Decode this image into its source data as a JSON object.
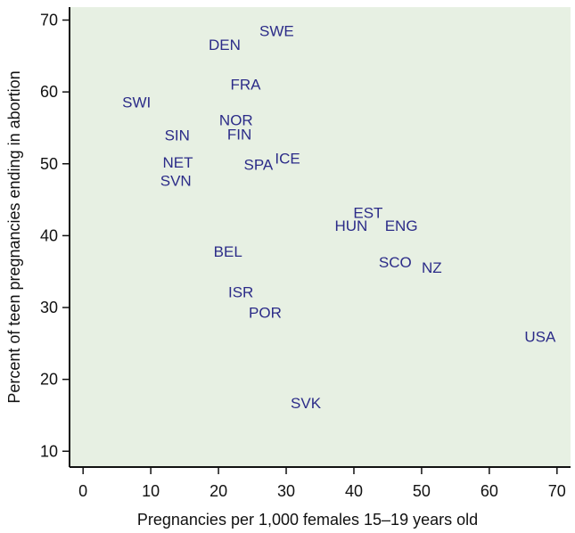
{
  "chart_data": {
    "type": "scatter",
    "title": "",
    "xlabel": "Pregnancies per 1,000 females 15–19 years old",
    "ylabel": "Percent of teen pregnancies ending in abortion",
    "xlim": [
      -2,
      72
    ],
    "ylim": [
      7.8,
      71.8
    ],
    "xticks": [
      "0",
      "10",
      "20",
      "30",
      "40",
      "50",
      "60",
      "70"
    ],
    "yticks": [
      "10",
      "20",
      "30",
      "40",
      "50",
      "60",
      "70"
    ],
    "grid": false,
    "points": [
      {
        "label": "SWE",
        "x": 28.6,
        "y": 68.5
      },
      {
        "label": "DEN",
        "x": 20.9,
        "y": 66.6
      },
      {
        "label": "FRA",
        "x": 24.0,
        "y": 61.1
      },
      {
        "label": "SWI",
        "x": 7.9,
        "y": 58.6
      },
      {
        "label": "NOR",
        "x": 22.6,
        "y": 56.1
      },
      {
        "label": "SIN",
        "x": 13.9,
        "y": 54.0
      },
      {
        "label": "FIN",
        "x": 23.1,
        "y": 54.1
      },
      {
        "label": "NET",
        "x": 14.0,
        "y": 50.2
      },
      {
        "label": "SPA",
        "x": 25.9,
        "y": 49.9
      },
      {
        "label": "ICE",
        "x": 30.2,
        "y": 50.8
      },
      {
        "label": "SVN",
        "x": 13.7,
        "y": 47.7
      },
      {
        "label": "EST",
        "x": 42.1,
        "y": 43.2
      },
      {
        "label": "HUN",
        "x": 39.6,
        "y": 41.4
      },
      {
        "label": "ENG",
        "x": 47.0,
        "y": 41.4
      },
      {
        "label": "BEL",
        "x": 21.4,
        "y": 37.8
      },
      {
        "label": "SCO",
        "x": 46.1,
        "y": 36.3
      },
      {
        "label": "NZ",
        "x": 51.5,
        "y": 35.6
      },
      {
        "label": "ISR",
        "x": 23.3,
        "y": 32.2
      },
      {
        "label": "POR",
        "x": 26.9,
        "y": 29.3
      },
      {
        "label": "USA",
        "x": 67.5,
        "y": 26.0
      },
      {
        "label": "SVK",
        "x": 32.9,
        "y": 16.7
      }
    ]
  },
  "colors": {
    "plot_background": "#e7f0e3",
    "point_label": "#2b2b88",
    "axis": "#111111"
  }
}
